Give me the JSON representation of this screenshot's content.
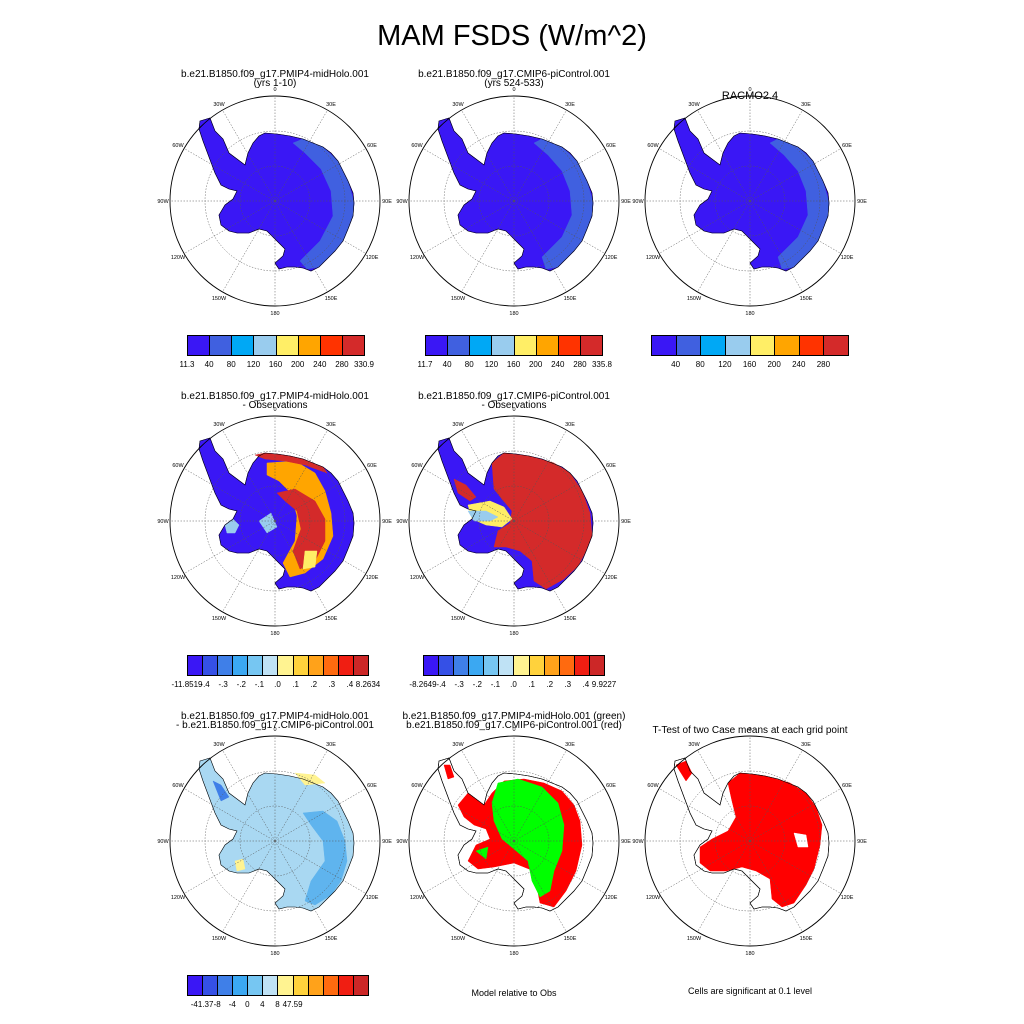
{
  "title": "MAM FSDS (W/m^2)",
  "map_labels": {
    "lon_0": "0",
    "lon_30e": "30E",
    "lon_60e": "60E",
    "lon_90e": "90E",
    "lon_120e": "120E",
    "lon_150e": "150E",
    "lon_180": "180",
    "lon_150w": "150W",
    "lon_120w": "120W",
    "lon_90w": "90W",
    "lon_60w": "60W",
    "lon_30w": "30W"
  },
  "panels": {
    "p1": {
      "title1": "b.e21.B1850.f09_g17.PMIP4-midHolo.001",
      "title2": "(yrs 1-10)"
    },
    "p2": {
      "title1": "b.e21.B1850.f09_g17.CMIP6-piControl.001",
      "title2": "(yrs 524-533)"
    },
    "p3": {
      "title1": "RACMO2.4"
    },
    "p4": {
      "title1": "b.e21.B1850.f09_g17.PMIP4-midHolo.001",
      "title2": "- Observations"
    },
    "p5": {
      "title1": "b.e21.B1850.f09_g17.CMIP6-piControl.001",
      "title2": "- Observations"
    },
    "p6": {
      "title1": "b.e21.B1850.f09_g17.PMIP4-midHolo.001",
      "title2": "- b.e21.B1850.f09_g17.CMIP6-piControl.001"
    },
    "p7": {
      "title1": "b.e21.B1850.f09_g17.PMIP4-midHolo.001 (green)",
      "title2": "b.e21.B1850.f09_g17.CMIP6-piControl.001 (red)"
    },
    "p8": {
      "title1": "T-Test of two Case means at each grid point"
    }
  },
  "colorbars": {
    "cb1": {
      "colors": [
        "#3a17f5",
        "#4060e0",
        "#00a8f5",
        "#99ccee",
        "#ffee66",
        "#ffa500",
        "#ff3300",
        "#d42a2a"
      ],
      "ticks": [
        "11.3",
        "40",
        "80",
        "120",
        "160",
        "200",
        "240",
        "280",
        "330.9"
      ]
    },
    "cb2": {
      "colors": [
        "#3a17f5",
        "#4060e0",
        "#00a8f5",
        "#99ccee",
        "#ffee66",
        "#ffa500",
        "#ff3300",
        "#d42a2a"
      ],
      "ticks": [
        "11.7",
        "40",
        "80",
        "120",
        "160",
        "200",
        "240",
        "280",
        "335.8"
      ]
    },
    "cb3": {
      "colors": [
        "#3a17f5",
        "#4060e0",
        "#00a8f5",
        "#99ccee",
        "#ffee66",
        "#ffa500",
        "#ff3300",
        "#d42a2a"
      ],
      "ticks": [
        "40",
        "80",
        "120",
        "160",
        "200",
        "240",
        "280"
      ]
    },
    "cb4": {
      "colors": [
        "#3a17f5",
        "#3550e6",
        "#3f7fe8",
        "#3ba8f2",
        "#76c6f2",
        "#bfe2f5",
        "#fff391",
        "#ffd23c",
        "#ffa21a",
        "#ff6a0f",
        "#f01e12",
        "#cc2727"
      ],
      "ticks": [
        "-11.8519",
        "-.4",
        "-.3",
        "-.2",
        "-.1",
        ".0",
        ".1",
        ".2",
        ".3",
        ".4",
        "8.2634"
      ]
    },
    "cb5": {
      "colors": [
        "#3a17f5",
        "#3550e6",
        "#3f7fe8",
        "#3ba8f2",
        "#76c6f2",
        "#bfe2f5",
        "#fff391",
        "#ffd23c",
        "#ffa21a",
        "#ff6a0f",
        "#f01e12",
        "#cc2727"
      ],
      "ticks": [
        "-8.2649",
        "-.4",
        "-.3",
        "-.2",
        "-.1",
        ".0",
        ".1",
        ".2",
        ".3",
        ".4",
        "9.9227"
      ]
    },
    "cb6": {
      "colors": [
        "#3a17f5",
        "#3550e6",
        "#3f7fe8",
        "#3ba8f2",
        "#76c6f2",
        "#bfe2f5",
        "#fff391",
        "#ffd23c",
        "#ffa21a",
        "#ff6a0f",
        "#f01e12",
        "#cc2727"
      ],
      "ticks": [
        "-41.37",
        "-8",
        "-4",
        "0",
        "4",
        "8",
        "47.59"
      ]
    }
  },
  "notes": {
    "model_relative": "Model relative to Obs",
    "cells_significant": "Cells are significant at 0.1 level"
  },
  "colors": {
    "ice_dark": "#3a17f5",
    "ice_mid": "#4060e0",
    "pos_red": "#d42a2a",
    "diff_light": "#a9d8f2",
    "diff_blue": "#5fb4ee",
    "green": "#00ff00",
    "red": "#ff0000"
  }
}
